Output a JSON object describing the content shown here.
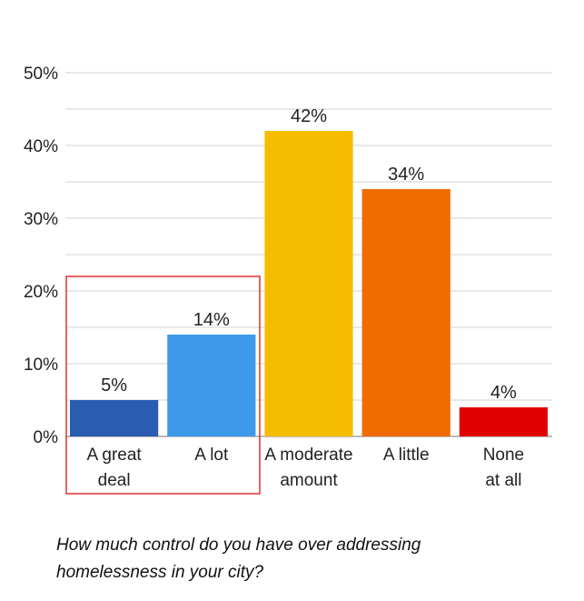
{
  "chart_data": {
    "type": "bar",
    "categories": [
      [
        "A great",
        "deal"
      ],
      [
        "A lot"
      ],
      [
        "A moderate",
        "amount"
      ],
      [
        "A little"
      ],
      [
        "None",
        "at all"
      ]
    ],
    "values": [
      5,
      14,
      42,
      34,
      4
    ],
    "data_labels": [
      "5%",
      "14%",
      "42%",
      "34%",
      "4%"
    ],
    "colors": [
      "#2a5db0",
      "#3d99ea",
      "#f6bd00",
      "#f06b00",
      "#e00000"
    ],
    "ylim": [
      0,
      50
    ],
    "yticks": [
      "0%",
      "10%",
      "20%",
      "30%",
      "40%",
      "50%"
    ],
    "grid": true,
    "highlight": {
      "categories": [
        0,
        1
      ],
      "color": "#e03030"
    },
    "title": "",
    "xlabel": "",
    "ylabel": ""
  },
  "caption": "How much control do you have over addressing homelessness in your city?"
}
